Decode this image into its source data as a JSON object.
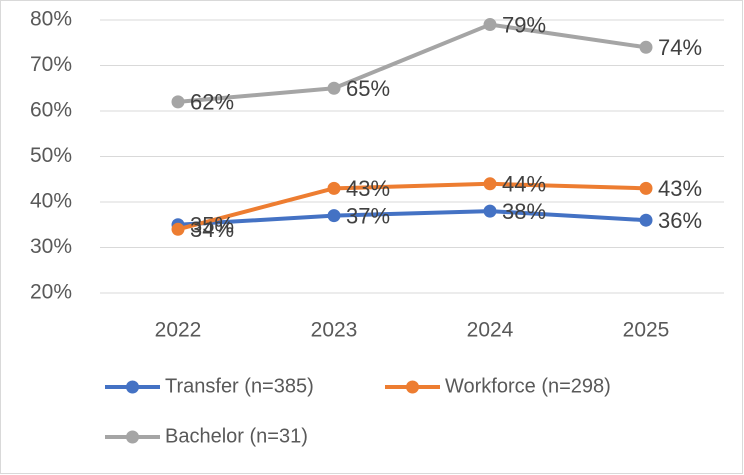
{
  "chart_data": {
    "type": "line",
    "categories": [
      "2022",
      "2023",
      "2024",
      "2025"
    ],
    "series": [
      {
        "name": "Transfer (n=385)",
        "color": "#4472c4",
        "values": [
          35,
          37,
          38,
          36
        ],
        "value_labels": [
          "35%",
          "37%",
          "38%",
          "36%"
        ]
      },
      {
        "name": "Workforce (n=298)",
        "color": "#ed7d31",
        "values": [
          34,
          43,
          44,
          43
        ],
        "value_labels": [
          "34%",
          "43%",
          "44%",
          "43%"
        ]
      },
      {
        "name": "Bachelor (n=31)",
        "color": "#a5a5a5",
        "values": [
          62,
          65,
          79,
          74
        ],
        "value_labels": [
          "62%",
          "65%",
          "79%",
          "74%"
        ]
      }
    ],
    "ylim": [
      20,
      80
    ],
    "yticks": [
      {
        "value": 20,
        "label": "20%"
      },
      {
        "value": 30,
        "label": "30%"
      },
      {
        "value": 40,
        "label": "40%"
      },
      {
        "value": 50,
        "label": "50%"
      },
      {
        "value": 60,
        "label": "60%"
      },
      {
        "value": 70,
        "label": "70%"
      },
      {
        "value": 80,
        "label": "80%"
      }
    ],
    "grid": true,
    "legend": "bottom"
  }
}
